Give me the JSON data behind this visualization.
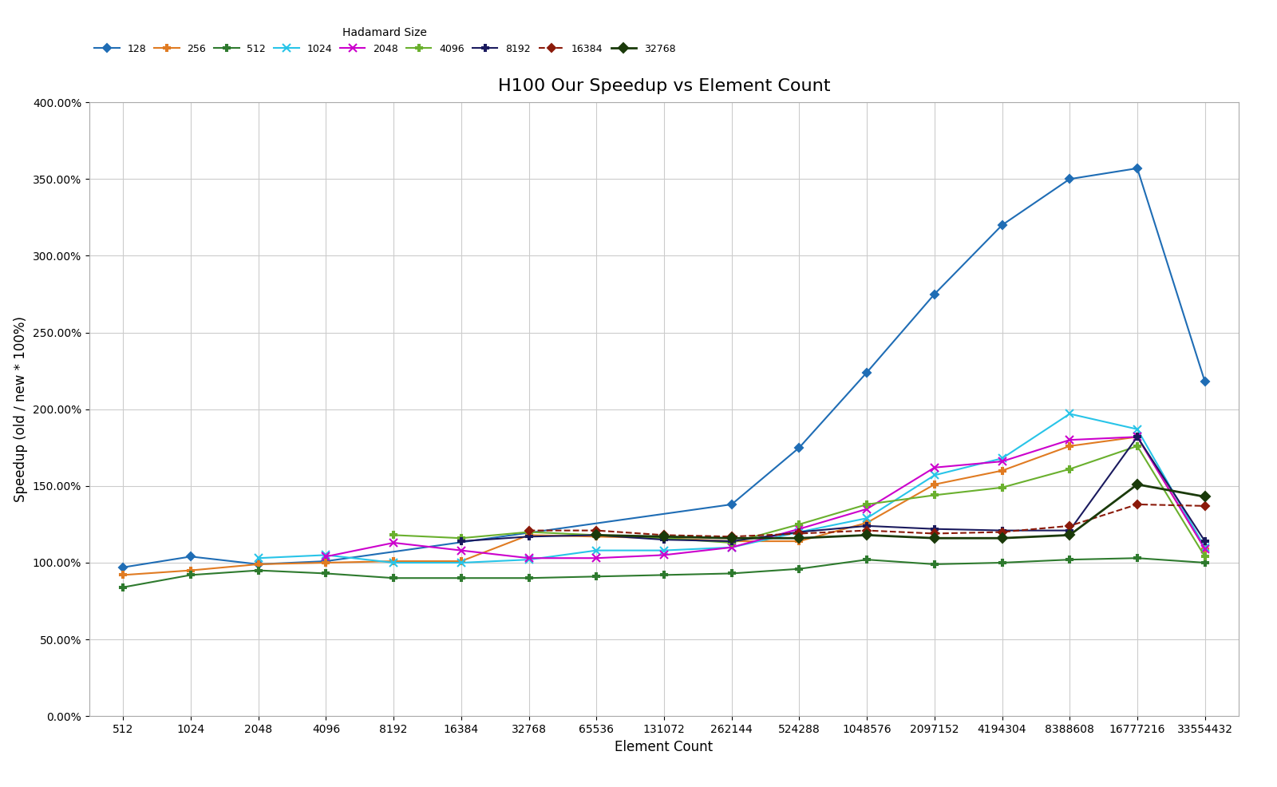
{
  "title": "H100 Our Speedup vs Element Count",
  "xlabel": "Element Count",
  "ylabel": "Speedup (old / new * 100%)",
  "x_labels": [
    "512",
    "1024",
    "2048",
    "4096",
    "8192",
    "16384",
    "32768",
    "65536",
    "131072",
    "262144",
    "524288",
    "1048576",
    "2097152",
    "4194304",
    "8388608",
    "16777216",
    "33554432"
  ],
  "x_values": [
    512,
    1024,
    2048,
    4096,
    8192,
    16384,
    32768,
    65536,
    131072,
    262144,
    524288,
    1048576,
    2097152,
    4194304,
    8388608,
    16777216,
    33554432
  ],
  "ylim": [
    0.0,
    4.0
  ],
  "yticks": [
    0.0,
    0.5,
    1.0,
    1.5,
    2.0,
    2.5,
    3.0,
    3.5,
    4.0
  ],
  "ytick_labels": [
    "0.00%",
    "50.00%",
    "100.00%",
    "150.00%",
    "200.00%",
    "250.00%",
    "300.00%",
    "350.00%",
    "400.00%"
  ],
  "series": [
    {
      "label": "128",
      "color": "#1f6db5",
      "marker": "D",
      "markersize": 5,
      "linestyle": "-",
      "linewidth": 1.5,
      "values": [
        0.97,
        1.04,
        0.99,
        1.01,
        null,
        null,
        null,
        null,
        null,
        1.38,
        1.75,
        2.24,
        2.75,
        3.2,
        3.5,
        3.57,
        2.18
      ]
    },
    {
      "label": "256",
      "color": "#e07b22",
      "marker": "P",
      "markersize": 6,
      "linestyle": "-",
      "linewidth": 1.5,
      "values": [
        0.92,
        0.95,
        0.99,
        1.0,
        1.01,
        1.01,
        1.18,
        1.17,
        1.16,
        1.14,
        1.14,
        1.26,
        1.51,
        1.6,
        1.76,
        1.82,
        1.09
      ]
    },
    {
      "label": "512",
      "color": "#2e7a2e",
      "marker": "P",
      "markersize": 6,
      "linestyle": "-",
      "linewidth": 1.5,
      "values": [
        0.84,
        0.92,
        0.95,
        0.93,
        0.9,
        0.9,
        0.9,
        0.91,
        0.92,
        0.93,
        0.96,
        1.02,
        0.99,
        1.0,
        1.02,
        1.03,
        1.0
      ]
    },
    {
      "label": "1024",
      "color": "#28c4e8",
      "marker": "x",
      "markersize": 7,
      "linestyle": "-",
      "linewidth": 1.5,
      "values": [
        null,
        null,
        1.03,
        1.05,
        1.0,
        1.0,
        1.02,
        1.08,
        1.08,
        1.1,
        1.2,
        1.29,
        1.57,
        1.68,
        1.97,
        1.87,
        1.1
      ]
    },
    {
      "label": "2048",
      "color": "#cc00cc",
      "marker": "x",
      "markersize": 7,
      "linestyle": "-",
      "linewidth": 1.5,
      "values": [
        null,
        null,
        null,
        1.04,
        1.13,
        1.08,
        1.03,
        1.03,
        1.05,
        1.1,
        1.22,
        1.35,
        1.62,
        1.66,
        1.8,
        1.82,
        1.09
      ]
    },
    {
      "label": "4096",
      "color": "#6ab02e",
      "marker": "P",
      "markersize": 6,
      "linestyle": "-",
      "linewidth": 1.5,
      "values": [
        null,
        null,
        null,
        null,
        1.18,
        1.16,
        1.2,
        1.18,
        1.16,
        1.13,
        1.25,
        1.38,
        1.44,
        1.49,
        1.61,
        1.76,
        1.04
      ]
    },
    {
      "label": "8192",
      "color": "#1a1a5e",
      "marker": "P",
      "markersize": 6,
      "linestyle": "-",
      "linewidth": 1.5,
      "values": [
        null,
        null,
        null,
        null,
        null,
        1.14,
        1.17,
        1.18,
        1.15,
        1.14,
        1.2,
        1.24,
        1.22,
        1.21,
        1.21,
        1.82,
        1.14
      ]
    },
    {
      "label": "16384",
      "color": "#8b1a0a",
      "marker": "D",
      "markersize": 5,
      "linestyle": "--",
      "linewidth": 1.5,
      "values": [
        null,
        null,
        null,
        null,
        null,
        null,
        1.21,
        1.21,
        1.18,
        1.17,
        1.19,
        1.21,
        1.19,
        1.2,
        1.24,
        1.38,
        1.37
      ]
    },
    {
      "label": "32768",
      "color": "#1a3a0a",
      "marker": "D",
      "markersize": 6,
      "linestyle": "-",
      "linewidth": 2.0,
      "values": [
        null,
        null,
        null,
        null,
        null,
        null,
        null,
        1.18,
        1.17,
        1.16,
        1.16,
        1.18,
        1.16,
        1.16,
        1.18,
        1.51,
        1.43
      ]
    }
  ],
  "background_color": "#ffffff",
  "grid_color": "#cccccc",
  "legend_title": "Hadamard Size",
  "title_fontsize": 16,
  "label_fontsize": 12,
  "tick_fontsize": 10
}
